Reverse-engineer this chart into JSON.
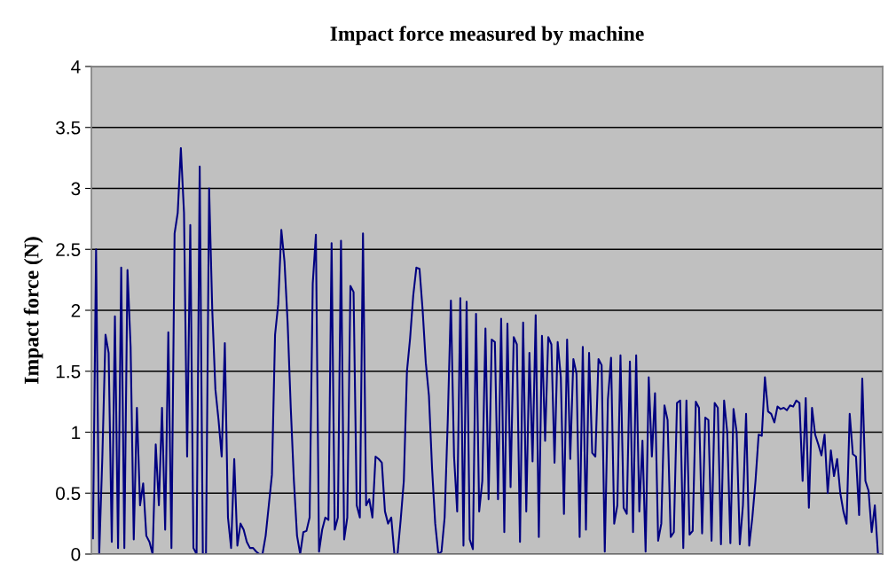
{
  "chart_data": {
    "type": "line",
    "title": "Impact force measured by machine",
    "ylabel": "Impact force (N)",
    "categories": [
      null,
      null,
      null,
      null,
      null,
      null,
      null,
      null,
      null,
      null,
      null,
      null,
      null,
      null,
      null,
      null,
      null,
      null,
      null,
      null,
      null,
      null,
      null,
      null,
      null,
      null,
      null,
      null,
      null,
      null,
      null,
      null,
      null,
      null,
      null,
      null,
      null,
      null,
      null,
      null,
      null,
      null,
      null,
      null,
      null,
      null,
      null,
      null,
      null,
      null,
      null,
      null,
      null,
      null,
      null,
      null,
      null,
      null,
      null,
      null,
      null,
      null,
      null,
      null,
      null,
      null,
      null,
      null,
      null,
      null,
      null,
      null,
      null,
      null,
      null,
      null,
      null,
      null,
      null,
      null,
      null,
      null,
      null,
      null,
      null,
      null,
      null,
      null,
      null,
      null,
      null,
      null,
      null,
      null,
      null,
      null,
      null,
      null,
      null,
      null,
      null,
      null,
      null,
      null,
      null,
      null,
      null,
      null,
      null,
      null,
      null,
      null,
      null,
      null,
      null,
      null,
      null,
      null,
      null,
      null,
      null,
      null,
      null,
      null,
      null,
      null,
      null,
      null,
      null,
      null,
      null,
      null,
      null,
      null,
      null,
      null,
      null,
      null,
      null,
      null,
      null,
      null,
      null,
      null,
      null,
      null,
      null,
      null,
      null,
      null,
      null,
      null,
      null,
      null,
      null,
      null,
      null,
      null,
      null,
      null,
      null,
      null,
      null,
      null,
      null,
      null,
      null,
      null,
      null,
      null,
      null,
      null,
      null,
      null,
      null,
      null,
      null,
      null,
      null,
      null,
      null,
      null,
      null,
      null,
      null,
      null,
      null,
      null,
      null,
      null,
      null,
      null,
      null,
      null,
      null,
      null,
      null,
      null,
      null,
      null,
      null,
      null,
      null,
      null,
      null,
      null,
      null,
      null,
      null,
      null,
      null,
      null,
      null,
      null,
      null,
      null,
      null,
      null,
      null,
      null,
      null,
      null,
      null,
      null,
      null,
      null,
      null,
      null,
      null,
      null,
      null,
      null,
      null,
      null,
      null,
      null,
      null,
      null,
      null,
      null,
      null,
      null,
      null,
      null,
      null,
      null,
      null,
      null,
      null,
      null,
      null,
      null
    ],
    "series": [
      {
        "color": "#000080",
        "values": [
          0.13,
          2.5,
          0,
          0.8,
          1.8,
          1.65,
          0.1,
          1.95,
          0.05,
          2.35,
          0.05,
          2.33,
          1.7,
          0.12,
          1.2,
          0.4,
          0.58,
          0.15,
          0.1,
          0,
          0.9,
          0.4,
          1.2,
          0.2,
          1.82,
          0.05,
          2.63,
          2.8,
          3.33,
          2.8,
          0.8,
          2.7,
          0.05,
          0,
          3.18,
          0,
          0,
          3.0,
          2.0,
          1.35,
          1.1,
          0.8,
          1.73,
          0.3,
          0.05,
          0.78,
          0.07,
          0.25,
          0.2,
          0.1,
          0.05,
          0.05,
          0.02,
          0.0,
          0.0,
          0.15,
          0.4,
          0.65,
          1.8,
          2.05,
          2.66,
          2.4,
          1.9,
          1.2,
          0.6,
          0.15,
          0,
          0.18,
          0.19,
          0.3,
          2.22,
          2.62,
          0.02,
          0.2,
          0.3,
          0.28,
          2.55,
          0.2,
          0.3,
          2.57,
          0.12,
          0.3,
          2.2,
          2.15,
          0.4,
          0.3,
          2.63,
          0.4,
          0.45,
          0.3,
          0.8,
          0.78,
          0.75,
          0.35,
          0.25,
          0.3,
          0.0,
          0.0,
          0.28,
          0.6,
          1.5,
          1.77,
          2.12,
          2.35,
          2.34,
          2.0,
          1.57,
          1.3,
          0.7,
          0.25,
          0.0,
          0.02,
          0.3,
          1.1,
          2.08,
          0.8,
          0.35,
          2.1,
          0.07,
          2.07,
          0.12,
          0.04,
          1.97,
          0.35,
          0.6,
          1.85,
          0.45,
          1.76,
          1.74,
          0.45,
          1.93,
          0.18,
          1.89,
          0.55,
          1.78,
          1.72,
          0.1,
          1.9,
          0.35,
          1.65,
          0.76,
          1.96,
          0.14,
          1.79,
          0.93,
          1.78,
          1.72,
          0.75,
          1.74,
          1.45,
          0.33,
          1.76,
          0.78,
          1.6,
          1.48,
          0.14,
          1.7,
          0.2,
          1.65,
          0.83,
          0.8,
          1.6,
          1.55,
          0.02,
          1.27,
          1.61,
          0.25,
          0.4,
          1.63,
          0.38,
          0.33,
          1.58,
          0.18,
          1.63,
          0.35,
          0.93,
          0.02,
          1.45,
          0.8,
          1.32,
          0.11,
          0.25,
          1.22,
          1.1,
          0.14,
          0.18,
          1.24,
          1.26,
          0.05,
          1.26,
          0.16,
          0.19,
          1.25,
          1.2,
          0.17,
          1.12,
          1.1,
          0.11,
          1.24,
          1.2,
          0.08,
          1.26,
          1.0,
          0.09,
          1.19,
          1.0,
          0.08,
          0.4,
          1.15,
          0.07,
          0.3,
          0.6,
          0.98,
          0.97,
          1.45,
          1.17,
          1.15,
          1.08,
          1.21,
          1.19,
          1.2,
          1.18,
          1.22,
          1.21,
          1.26,
          1.24,
          0.6,
          1.28,
          0.38,
          1.2,
          0.98,
          0.9,
          0.81,
          0.98,
          0.5,
          0.85,
          0.64,
          0.78,
          0.5,
          0.35,
          0.25,
          1.15,
          0.82,
          0.8,
          0.32,
          1.44,
          0.6,
          0.52,
          0.18,
          0.4,
          0.0,
          0.0
        ]
      }
    ],
    "ylim": [
      0,
      4
    ],
    "yticks": [
      0,
      0.5,
      1,
      1.5,
      2,
      2.5,
      3,
      3.5,
      4
    ],
    "grid": "y",
    "legend": false,
    "marker": "none",
    "line_style": "solid"
  }
}
